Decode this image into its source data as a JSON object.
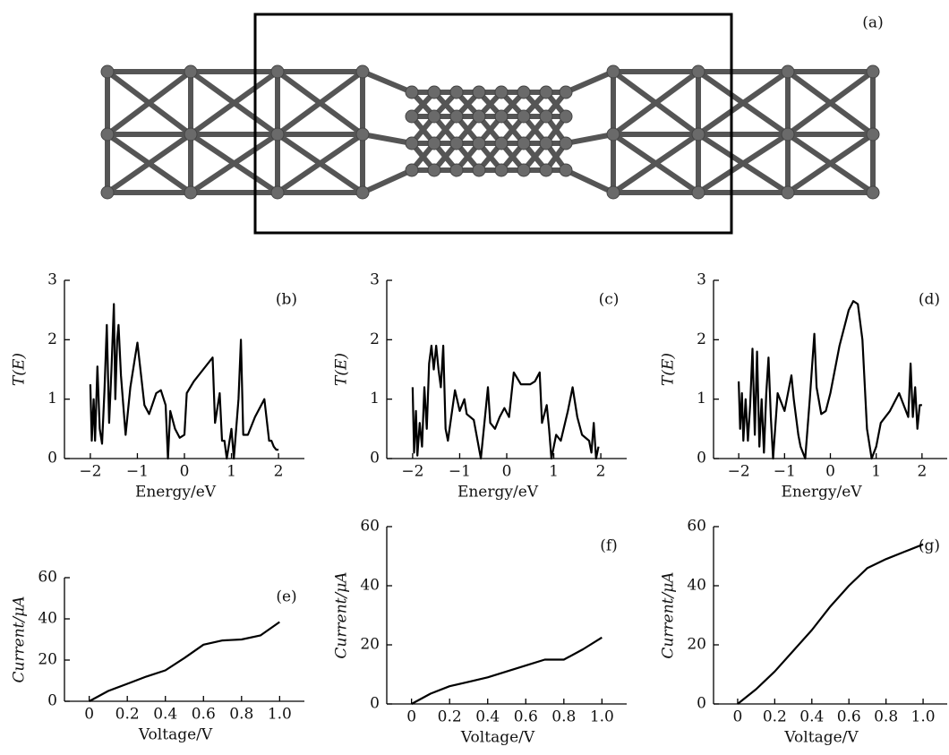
{
  "structure_panel": {
    "label": "(a)"
  },
  "chart_data": [
    {
      "type": "line",
      "panel_label": "(b)",
      "x_label": "Energy/eV",
      "y_label": "T(E)",
      "color": "#000000",
      "xlim": [
        -2.55,
        2.55
      ],
      "ylim": [
        0,
        3
      ],
      "xticks": [
        {
          "value": -2,
          "label": "−2"
        },
        {
          "value": -1,
          "label": "−1"
        },
        0,
        1,
        2
      ],
      "yticks": [
        0,
        1,
        2,
        3
      ],
      "x": [
        -2,
        -1.97,
        -1.93,
        -1.9,
        -1.85,
        -1.8,
        -1.75,
        -1.7,
        -1.65,
        -1.6,
        -1.55,
        -1.5,
        -1.47,
        -1.43,
        -1.4,
        -1.35,
        -1.3,
        -1.25,
        -1.15,
        -1.05,
        -1.0,
        -0.95,
        -0.85,
        -0.75,
        -0.6,
        -0.5,
        -0.4,
        -0.35,
        -0.3,
        -0.2,
        -0.1,
        0.0,
        0.05,
        0.2,
        0.4,
        0.6,
        0.65,
        0.75,
        0.8,
        0.85,
        0.9,
        1.0,
        1.05,
        1.15,
        1.2,
        1.25,
        1.35,
        1.5,
        1.7,
        1.8,
        1.85,
        1.9,
        1.95,
        2.0
      ],
      "values": [
        1.25,
        0.3,
        1.0,
        0.3,
        1.55,
        0.5,
        0.25,
        1.15,
        2.25,
        0.6,
        1.5,
        2.6,
        1.0,
        2.0,
        2.25,
        1.4,
        0.9,
        0.4,
        1.2,
        1.7,
        1.95,
        1.6,
        0.9,
        0.75,
        1.1,
        1.15,
        0.9,
        0.0,
        0.8,
        0.5,
        0.35,
        0.4,
        1.1,
        1.3,
        1.5,
        1.7,
        0.6,
        1.1,
        0.3,
        0.3,
        0.0,
        0.5,
        0.0,
        1.0,
        2.0,
        0.4,
        0.4,
        0.7,
        1.0,
        0.3,
        0.3,
        0.2,
        0.15,
        0.15
      ]
    },
    {
      "type": "line",
      "panel_label": "(c)",
      "x_label": "Energy/eV",
      "y_label": "T(E)",
      "color": "#000000",
      "xlim": [
        -2.55,
        2.55
      ],
      "ylim": [
        0,
        3
      ],
      "xticks": [
        {
          "value": -2,
          "label": "−2"
        },
        {
          "value": -1,
          "label": "−1"
        },
        0,
        1,
        2
      ],
      "yticks": [
        0,
        1,
        2,
        3
      ],
      "x": [
        -2,
        -1.97,
        -1.93,
        -1.9,
        -1.85,
        -1.8,
        -1.75,
        -1.7,
        -1.65,
        -1.6,
        -1.55,
        -1.5,
        -1.45,
        -1.4,
        -1.35,
        -1.3,
        -1.25,
        -1.1,
        -1.0,
        -0.9,
        -0.85,
        -0.7,
        -0.55,
        -0.45,
        -0.4,
        -0.35,
        -0.25,
        -0.15,
        -0.05,
        0.05,
        0.15,
        0.3,
        0.5,
        0.6,
        0.7,
        0.75,
        0.85,
        0.9,
        0.95,
        1.05,
        1.15,
        1.3,
        1.4,
        1.5,
        1.6,
        1.75,
        1.8,
        1.85,
        1.9,
        1.95
      ],
      "values": [
        1.2,
        0.1,
        0.8,
        0.05,
        0.6,
        0.2,
        1.2,
        0.5,
        1.6,
        1.9,
        1.5,
        1.9,
        1.5,
        1.2,
        1.9,
        0.5,
        0.3,
        1.15,
        0.8,
        1.0,
        0.75,
        0.65,
        0.0,
        0.8,
        1.2,
        0.6,
        0.5,
        0.7,
        0.85,
        0.7,
        1.45,
        1.25,
        1.25,
        1.3,
        1.45,
        0.6,
        0.9,
        0.5,
        0.0,
        0.4,
        0.3,
        0.8,
        1.2,
        0.7,
        0.4,
        0.3,
        0.1,
        0.6,
        0.0,
        0.2
      ]
    },
    {
      "type": "line",
      "panel_label": "(d)",
      "x_label": "Energy/eV",
      "y_label": "T(E)",
      "color": "#000000",
      "xlim": [
        -2.55,
        2.55
      ],
      "ylim": [
        0,
        3
      ],
      "xticks": [
        {
          "value": -2,
          "label": "−2"
        },
        {
          "value": -1,
          "label": "−1"
        },
        0,
        1,
        2
      ],
      "yticks": [
        0,
        1,
        2,
        3
      ],
      "x": [
        -2,
        -1.97,
        -1.93,
        -1.9,
        -1.85,
        -1.8,
        -1.75,
        -1.7,
        -1.65,
        -1.6,
        -1.55,
        -1.5,
        -1.45,
        -1.4,
        -1.35,
        -1.3,
        -1.25,
        -1.15,
        -1.0,
        -0.85,
        -0.8,
        -0.7,
        -0.65,
        -0.55,
        -0.45,
        -0.35,
        -0.3,
        -0.2,
        -0.1,
        0.0,
        0.1,
        0.2,
        0.4,
        0.5,
        0.6,
        0.7,
        0.8,
        0.9,
        1.0,
        1.1,
        1.3,
        1.5,
        1.7,
        1.75,
        1.8,
        1.85,
        1.9,
        1.95,
        2.0
      ],
      "values": [
        1.3,
        0.5,
        1.1,
        0.3,
        1.0,
        0.3,
        0.9,
        1.85,
        0.4,
        1.8,
        0.2,
        1.0,
        0.1,
        1.1,
        1.7,
        0.7,
        0.0,
        1.1,
        0.8,
        1.4,
        1.0,
        0.4,
        0.2,
        0.0,
        1.0,
        2.1,
        1.2,
        0.75,
        0.8,
        1.1,
        1.5,
        1.9,
        2.5,
        2.65,
        2.6,
        2.0,
        0.5,
        0.0,
        0.2,
        0.6,
        0.8,
        1.1,
        0.7,
        1.6,
        0.7,
        1.2,
        0.5,
        0.9,
        0.9
      ]
    },
    {
      "type": "line",
      "panel_label": "(e)",
      "x_label": "Voltage/V",
      "y_label": "Current/μA",
      "color": "#000000",
      "xlim": [
        -0.13,
        1.13
      ],
      "ylim": [
        0,
        60
      ],
      "xticks": [
        0,
        0.2,
        0.4,
        0.6,
        0.8,
        {
          "value": 1,
          "label": "1.0"
        }
      ],
      "yticks": [
        0,
        20,
        40,
        60
      ],
      "x": [
        0,
        0.1,
        0.2,
        0.3,
        0.4,
        0.5,
        0.6,
        0.7,
        0.8,
        0.9,
        1.0
      ],
      "values": [
        0,
        5,
        8.5,
        12,
        15,
        21,
        27.5,
        29.5,
        30,
        32,
        38.5
      ]
    },
    {
      "type": "line",
      "panel_label": "(f)",
      "x_label": "Voltage/V",
      "y_label": "Current/μA",
      "color": "#000000",
      "xlim": [
        -0.13,
        1.13
      ],
      "ylim": [
        0,
        60
      ],
      "xticks": [
        0,
        0.2,
        0.4,
        0.6,
        0.8,
        {
          "value": 1,
          "label": "1.0"
        }
      ],
      "yticks": [
        0,
        20,
        40,
        60
      ],
      "x": [
        0,
        0.1,
        0.2,
        0.3,
        0.4,
        0.5,
        0.6,
        0.7,
        0.8,
        0.9,
        1.0
      ],
      "values": [
        0,
        3.5,
        6,
        7.5,
        9,
        11,
        13,
        15,
        15,
        18.5,
        22.5
      ]
    },
    {
      "type": "line",
      "panel_label": "(g)",
      "x_label": "Voltage/V",
      "y_label": "Current/μA",
      "color": "#000000",
      "xlim": [
        -0.13,
        1.13
      ],
      "ylim": [
        0,
        60
      ],
      "xticks": [
        0,
        0.2,
        0.4,
        0.6,
        0.8,
        {
          "value": 1,
          "label": "1.0"
        }
      ],
      "yticks": [
        0,
        20,
        40,
        60
      ],
      "x": [
        0,
        0.1,
        0.2,
        0.3,
        0.4,
        0.5,
        0.6,
        0.7,
        0.8,
        0.9,
        1.0
      ],
      "values": [
        0,
        5,
        11,
        18,
        25,
        33,
        40,
        46,
        49,
        51.5,
        54
      ]
    }
  ]
}
